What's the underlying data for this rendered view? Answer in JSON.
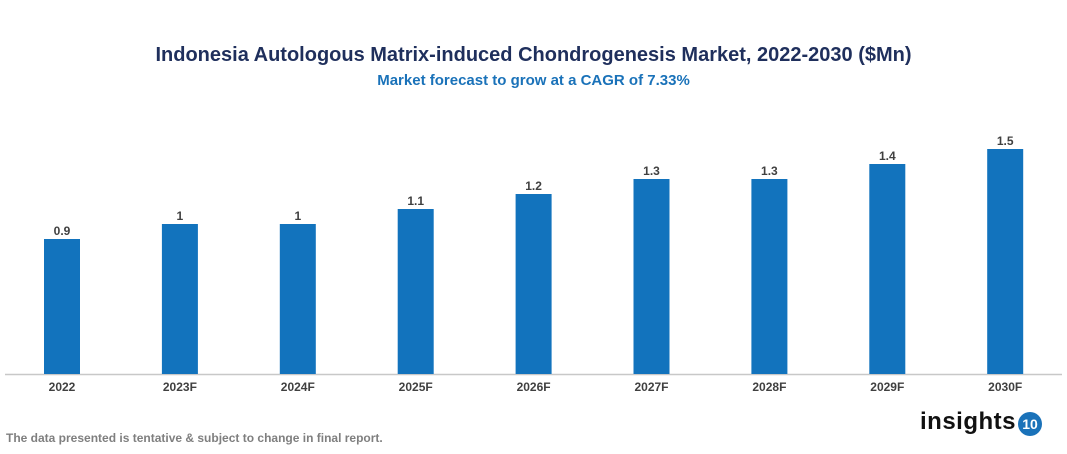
{
  "chart_data": {
    "type": "bar",
    "title": "Indonesia Autologous Matrix-induced Chondrogenesis Market, 2022-2030 ($Mn)",
    "subtitle": "Market forecast to grow at a CAGR of 7.33%",
    "categories": [
      "2022",
      "2023F",
      "2024F",
      "2025F",
      "2026F",
      "2027F",
      "2028F",
      "2029F",
      "2030F"
    ],
    "values": [
      0.9,
      1.0,
      1.0,
      1.1,
      1.2,
      1.3,
      1.3,
      1.4,
      1.5
    ],
    "data_labels": [
      "0.9",
      "1",
      "1",
      "1.1",
      "1.2",
      "1.3",
      "1.3",
      "1.4",
      "1.5"
    ],
    "xlabel": "",
    "ylabel": "",
    "ylim": [
      0,
      1.5
    ],
    "grid": false,
    "y_axis_visible": false,
    "bar_color": "#1273bd"
  },
  "footer": {
    "note": "The data presented is tentative & subject to change in final report.",
    "logo_text": "insights",
    "logo_badge": "10"
  }
}
